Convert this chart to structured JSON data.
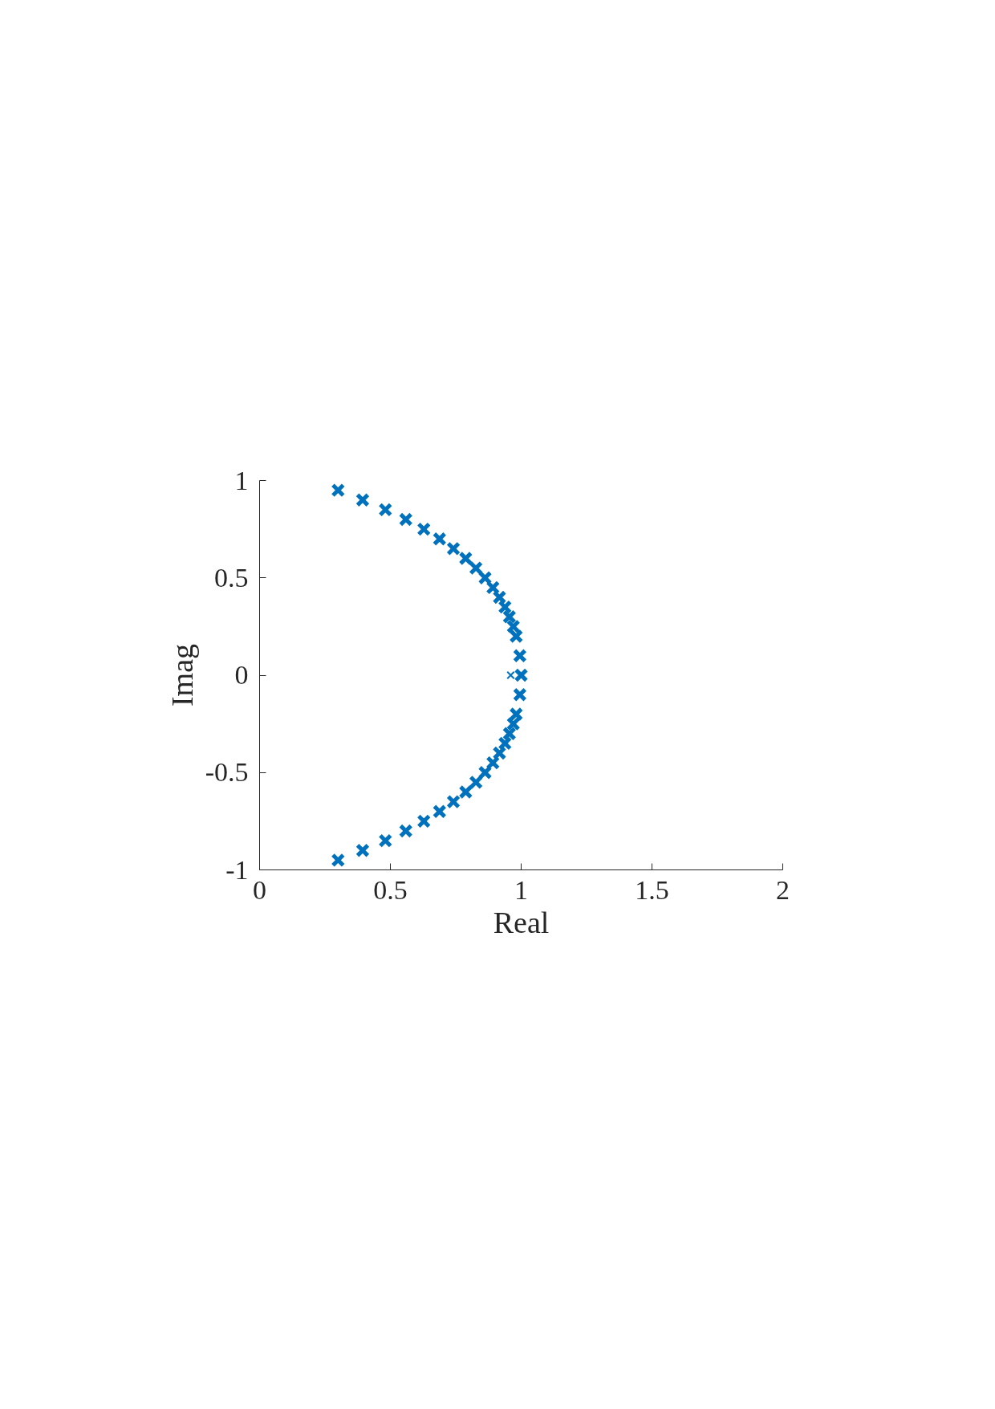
{
  "chart_data": {
    "type": "scatter",
    "xlabel": "Real",
    "ylabel": "Imag",
    "xlim": [
      0,
      2
    ],
    "ylim": [
      -1,
      1
    ],
    "xticks": [
      0,
      0.5,
      1,
      1.5,
      2
    ],
    "yticks": [
      -1,
      -0.5,
      0,
      0.5,
      1
    ],
    "grid": false,
    "marker": "cross",
    "series": [
      {
        "color": "#0072bd",
        "x": [
          0.3,
          0.394,
          0.481,
          0.559,
          0.628,
          0.688,
          0.741,
          0.788,
          0.827,
          0.862,
          0.892,
          0.917,
          0.938,
          0.955,
          0.97,
          0.981,
          0.995,
          1.0,
          0.995,
          0.981,
          0.97,
          0.955,
          0.938,
          0.917,
          0.892,
          0.862,
          0.827,
          0.788,
          0.741,
          0.688,
          0.628,
          0.559,
          0.481,
          0.394,
          0.3
        ],
        "values": [
          0.95,
          0.9,
          0.85,
          0.8,
          0.75,
          0.7,
          0.65,
          0.6,
          0.55,
          0.5,
          0.45,
          0.4,
          0.35,
          0.3,
          0.25,
          0.2,
          0.1,
          0,
          -0.1,
          -0.2,
          -0.25,
          -0.3,
          -0.35,
          -0.4,
          -0.45,
          -0.5,
          -0.55,
          -0.6,
          -0.65,
          -0.7,
          -0.75,
          -0.8,
          -0.85,
          -0.9,
          -0.95
        ]
      },
      {
        "color": "#0072bd",
        "x": [
          0.96
        ],
        "values": [
          0
        ]
      }
    ]
  }
}
